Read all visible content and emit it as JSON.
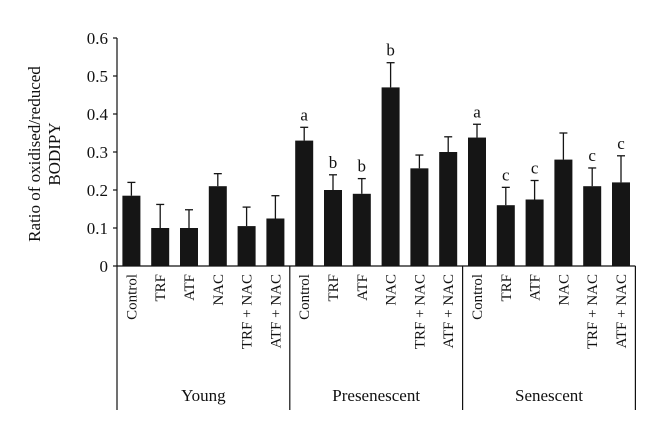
{
  "chart_data": {
    "type": "bar",
    "ylabel_lines": [
      "Ratio of oxidised/reduced",
      "BODIPY"
    ],
    "ylim": [
      0,
      0.6
    ],
    "yticks": [
      "0",
      "0.1",
      "0.2",
      "0.3",
      "0.4",
      "0.5",
      "0.6"
    ],
    "grid": false,
    "groups": [
      {
        "name": "Young",
        "bars": [
          {
            "label": "Control",
            "value": 0.185,
            "error": 0.035,
            "sig": ""
          },
          {
            "label": "TRF",
            "value": 0.1,
            "error": 0.062,
            "sig": ""
          },
          {
            "label": "ATF",
            "value": 0.1,
            "error": 0.048,
            "sig": ""
          },
          {
            "label": "NAC",
            "value": 0.21,
            "error": 0.033,
            "sig": ""
          },
          {
            "label": "TRF + NAC",
            "value": 0.105,
            "error": 0.05,
            "sig": ""
          },
          {
            "label": "ATF + NAC",
            "value": 0.125,
            "error": 0.06,
            "sig": ""
          }
        ]
      },
      {
        "name": "Presenescent",
        "bars": [
          {
            "label": "Control",
            "value": 0.33,
            "error": 0.035,
            "sig": "a"
          },
          {
            "label": "TRF",
            "value": 0.2,
            "error": 0.04,
            "sig": "b"
          },
          {
            "label": "ATF",
            "value": 0.19,
            "error": 0.04,
            "sig": "b"
          },
          {
            "label": "NAC",
            "value": 0.47,
            "error": 0.065,
            "sig": "b"
          },
          {
            "label": "TRF + NAC",
            "value": 0.257,
            "error": 0.035,
            "sig": ""
          },
          {
            "label": "ATF + NAC",
            "value": 0.3,
            "error": 0.04,
            "sig": ""
          }
        ]
      },
      {
        "name": "Senescent",
        "bars": [
          {
            "label": "Control",
            "value": 0.338,
            "error": 0.035,
            "sig": "a"
          },
          {
            "label": "TRF",
            "value": 0.16,
            "error": 0.047,
            "sig": "c"
          },
          {
            "label": "ATF",
            "value": 0.175,
            "error": 0.05,
            "sig": "c"
          },
          {
            "label": "NAC",
            "value": 0.28,
            "error": 0.07,
            "sig": ""
          },
          {
            "label": "TRF + NAC",
            "value": 0.21,
            "error": 0.048,
            "sig": "c"
          },
          {
            "label": "ATF + NAC",
            "value": 0.22,
            "error": 0.07,
            "sig": "c"
          }
        ]
      }
    ]
  }
}
